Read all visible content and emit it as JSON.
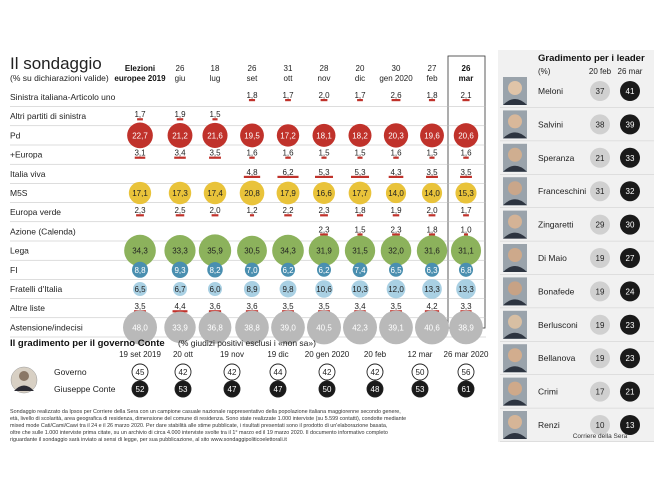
{
  "header": {
    "title": "Il sondaggio",
    "subtitle": "(% su dichiarazioni valide)"
  },
  "colors": {
    "red": "#c0322b",
    "yellow": "#e9c33a",
    "green": "#8cb25c",
    "blue": "#4a8fb0",
    "lightblue": "#a9d0e3",
    "grey": "#b9b9b9",
    "grey_light": "#d0d0d0",
    "dark": "#1a1a1a"
  },
  "chart_data": [
    {
      "type": "table",
      "title": "Il sondaggio",
      "subtitle": "(% su dichiarazioni valide)",
      "columns": [
        {
          "l1": "Elezioni",
          "l2": "europee 2019",
          "bold": true
        },
        {
          "l1": "26",
          "l2": "giu",
          "bold": false
        },
        {
          "l1": "18",
          "l2": "lug",
          "bold": false
        },
        {
          "l1": "26",
          "l2": "set",
          "bold": false
        },
        {
          "l1": "31",
          "l2": "ott",
          "bold": false
        },
        {
          "l1": "28",
          "l2": "nov",
          "bold": false
        },
        {
          "l1": "20",
          "l2": "dic",
          "bold": false
        },
        {
          "l1": "30",
          "l2": "gen 2020",
          "bold": false
        },
        {
          "l1": "27",
          "l2": "feb",
          "bold": false
        },
        {
          "l1": "26",
          "l2": "mar",
          "bold": true
        }
      ],
      "rows": [
        {
          "party": "Sinistra italiana-Articolo uno",
          "color": "none",
          "values": [
            "",
            "",
            "",
            "1,8",
            "1,7",
            "2,0",
            "1,7",
            "2,6",
            "1,8",
            "2,1"
          ]
        },
        {
          "party": "Altri partiti di sinistra",
          "color": "none",
          "values": [
            "1,7",
            "1,9",
            "1,5",
            "",
            "",
            "",
            "",
            "",
            "",
            ""
          ]
        },
        {
          "party": "Pd",
          "color": "red",
          "values": [
            "22,7",
            "21,2",
            "21,6",
            "19,5",
            "17,2",
            "18,1",
            "18,2",
            "20,3",
            "19,6",
            "20,6"
          ]
        },
        {
          "party": "+Europa",
          "color": "none",
          "values": [
            "3,1",
            "3,4",
            "3,5",
            "1,6",
            "1,6",
            "1,5",
            "1,5",
            "1,6",
            "1,5",
            "1,6"
          ]
        },
        {
          "party": "Italia viva",
          "color": "none",
          "values": [
            "",
            "",
            "",
            "4,8",
            "6,2",
            "5,3",
            "5,3",
            "4,3",
            "3,5",
            "3,5"
          ]
        },
        {
          "party": "M5S",
          "color": "yellow",
          "values": [
            "17,1",
            "17,3",
            "17,4",
            "20,8",
            "17,9",
            "16,6",
            "17,7",
            "14,0",
            "14,0",
            "15,3"
          ]
        },
        {
          "party": "Europa verde",
          "color": "none",
          "values": [
            "2,3",
            "2,5",
            "2,0",
            "1,2",
            "2,2",
            "2,3",
            "1,8",
            "1,9",
            "2,0",
            "1,7"
          ]
        },
        {
          "party": "Azione (Calenda)",
          "color": "none",
          "values": [
            "",
            "",
            "",
            "",
            "",
            "2,3",
            "1,5",
            "2,3",
            "1,8",
            "1,0"
          ]
        },
        {
          "party": "Lega",
          "color": "green",
          "values": [
            "34,3",
            "33,3",
            "35,9",
            "30,5",
            "34,3",
            "31,9",
            "31,5",
            "32,0",
            "31,6",
            "31,1"
          ]
        },
        {
          "party": "FI",
          "color": "blue",
          "values": [
            "8,8",
            "9,3",
            "8,2",
            "7,0",
            "6,2",
            "6,2",
            "7,4",
            "6,5",
            "6,3",
            "6,8"
          ]
        },
        {
          "party": "Fratelli d'Italia",
          "color": "lightblue",
          "values": [
            "6,5",
            "6,7",
            "6,0",
            "8,9",
            "9,8",
            "10,6",
            "10,3",
            "12,0",
            "13,3",
            "13,3"
          ]
        },
        {
          "party": "Altre liste",
          "color": "none",
          "values": [
            "3,5",
            "4,4",
            "3,6",
            "3,6",
            "3,5",
            "3,5",
            "3,4",
            "3,5",
            "4,2",
            "3,3"
          ]
        },
        {
          "party": "Astensione/indecisi",
          "color": "grey",
          "values": [
            "48,0",
            "33,9",
            "36,8",
            "38,8",
            "39,0",
            "40,5",
            "42,3",
            "39,1",
            "40,6",
            "38,9"
          ]
        }
      ]
    },
    {
      "type": "table",
      "title": "Gradimento per i leader",
      "unit_label": "(%)",
      "columns": [
        "20 feb",
        "26 mar"
      ],
      "rows": [
        {
          "name": "Meloni",
          "values": [
            37,
            41
          ]
        },
        {
          "name": "Salvini",
          "values": [
            38,
            39
          ]
        },
        {
          "name": "Speranza",
          "values": [
            21,
            33
          ]
        },
        {
          "name": "Franceschini",
          "values": [
            31,
            32
          ]
        },
        {
          "name": "Zingaretti",
          "values": [
            29,
            30
          ]
        },
        {
          "name": "Di Maio",
          "values": [
            19,
            27
          ]
        },
        {
          "name": "Bonafede",
          "values": [
            19,
            24
          ]
        },
        {
          "name": "Berlusconi",
          "values": [
            19,
            23
          ]
        },
        {
          "name": "Bellanova",
          "values": [
            19,
            23
          ]
        },
        {
          "name": "Crimi",
          "values": [
            17,
            21
          ]
        },
        {
          "name": "Renzi",
          "values": [
            10,
            13
          ]
        }
      ]
    },
    {
      "type": "table",
      "title": "Il gradimento per il governo Conte",
      "subtitle": "(% giudizi positivi esclusi i «non sa»)",
      "columns": [
        "19 set 2019",
        "20 ott",
        "19 nov",
        "19 dic",
        "20 gen 2020",
        "20 feb",
        "12 mar",
        "26 mar 2020"
      ],
      "series": [
        {
          "name": "Governo",
          "values": [
            45,
            42,
            42,
            44,
            42,
            42,
            50,
            56
          ]
        },
        {
          "name": "Giuseppe Conte",
          "values": [
            52,
            53,
            47,
            47,
            50,
            48,
            53,
            61
          ]
        }
      ]
    }
  ],
  "footer": {
    "note1": "Sondaggio realizzato da Ipsos per Corriere della Sera con un campione casuale nazionale rappresentativo della popolazione italiana maggiorenne secondo genere,",
    "note2": "età, livello di scolarità, area geografica di residenza, dimensione del comune di residenza. Sono state realizzate 1.000 interviste (su 5.599 contatti), condotte mediante",
    "note3": "mixed mode Cati/Cami/Cawi tra il 24 e il 26 marzo 2020. Per dare stabilità alle stime pubblicate, i risultati presentati sono il prodotto di un'elaborazione basata,",
    "note4": "oltre che sulle 1.000 interviste prima citate, su un archivio di circa 4.000 interviste svolte tra il 1° marzo ed il 19 marzo 2020. Il documento informativo completo",
    "note5": "riguardante il sondaggio sarà inviato ai sensi di legge, per sua pubblicazione, al sito www.sondaggipoliticoelettorali.it",
    "credit": "Corriere della Sera"
  }
}
